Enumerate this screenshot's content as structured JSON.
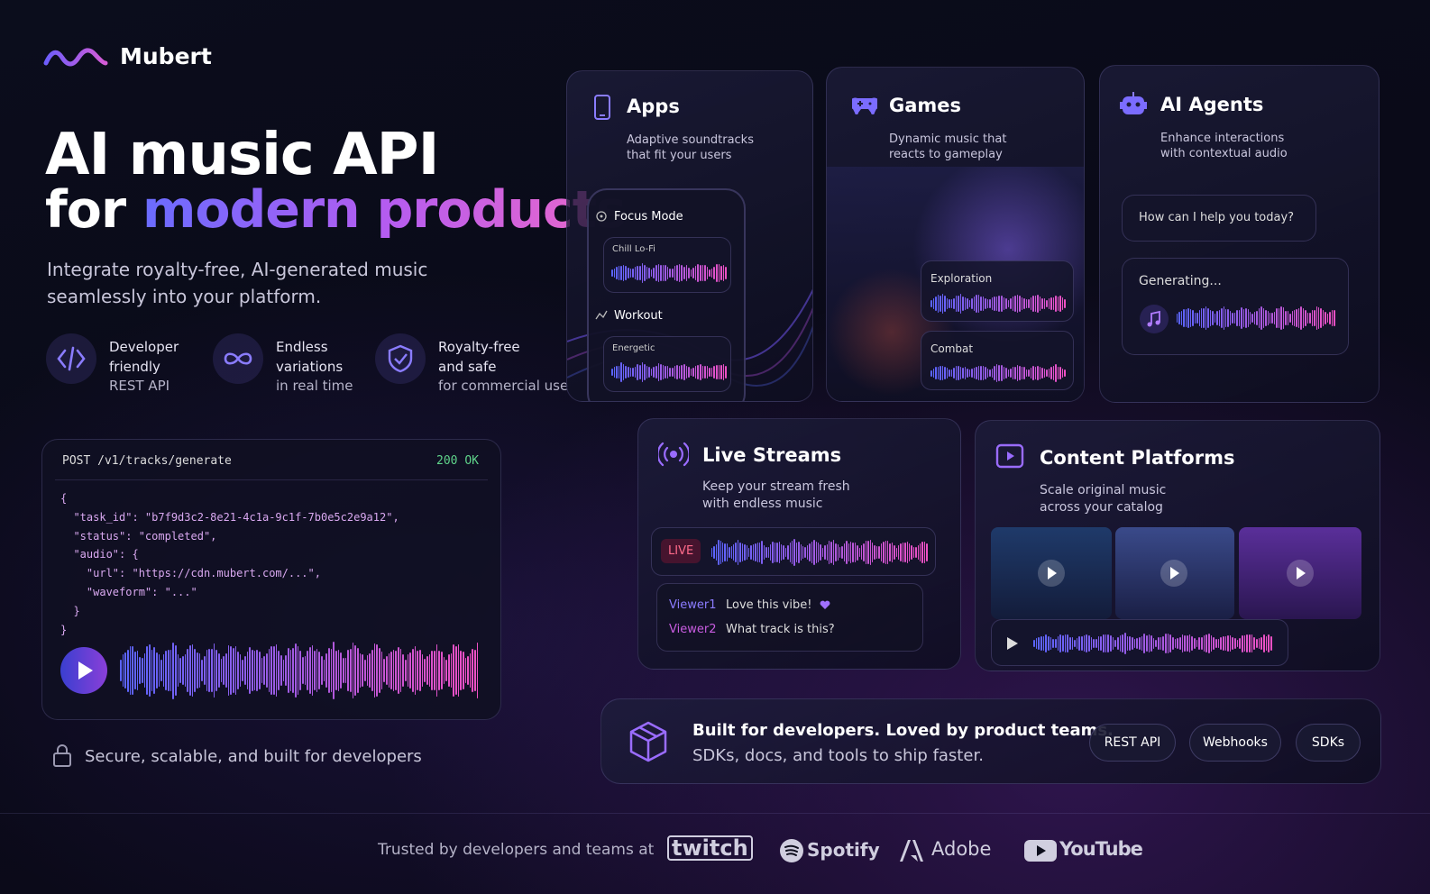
{
  "brand": "Mubert",
  "hero": {
    "title_line1": "AI music API",
    "title_line2_plain": "for",
    "title_line2_accent": "modern products",
    "subtitle_line1": "Integrate royalty-free, AI-generated music",
    "subtitle_line2": "seamlessly into your platform."
  },
  "features": [
    {
      "lines": [
        "Developer",
        "friendly",
        "REST API"
      ]
    },
    {
      "lines": [
        "Endless",
        "variations",
        "in real time"
      ]
    },
    {
      "lines": [
        "Royalty-free",
        "and safe",
        "for commercial use"
      ]
    }
  ],
  "code": {
    "request": "POST /v1/tracks/generate",
    "status": "200 OK",
    "lines": [
      "{",
      "  \"task_id\": \"b7f9d3c2-8e21-4c1a-9c1f-7b0e5c2e9a12\",",
      "  \"status\": \"completed\",",
      "  \"audio\": {",
      "    \"url\": \"https://cdn.mubert.com/...\",",
      "    \"waveform\": \"...\"",
      "  }",
      "}"
    ]
  },
  "secure_note": "Secure, scalable, and built for developers",
  "apps": {
    "title": "Apps",
    "desc_line1": "Adaptive soundtracks",
    "desc_line2": "that fit your users",
    "modes": [
      {
        "name": "Focus Mode",
        "preset": "Chill Lo-Fi"
      },
      {
        "name": "Workout",
        "preset": "Energetic"
      }
    ]
  },
  "games": {
    "title": "Games",
    "desc_line1": "Dynamic music that",
    "desc_line2": "reacts to gameplay",
    "tracks": [
      "Exploration",
      "Combat"
    ]
  },
  "agents": {
    "title": "AI Agents",
    "desc_line1": "Enhance interactions",
    "desc_line2": "with contextual audio",
    "prompt": "How can I help you today?",
    "status": "Generating..."
  },
  "live": {
    "title": "Live Streams",
    "desc_line1": "Keep your stream fresh",
    "desc_line2": "with endless music",
    "badge": "LIVE",
    "chat": [
      {
        "user": "Viewer1",
        "message": "Love this vibe!"
      },
      {
        "user": "Viewer2",
        "message": "What track is this?"
      }
    ]
  },
  "content": {
    "title": "Content Platforms",
    "desc_line1": "Scale original music",
    "desc_line2": "across your catalog"
  },
  "banner": {
    "headline": "Built for developers. Loved by product teams.",
    "sub": "SDKs, docs, and tools to ship faster.",
    "buttons": [
      "REST API",
      "Webhooks",
      "SDKs"
    ]
  },
  "footer": {
    "trusted": "Trusted by developers and teams at",
    "logos": [
      "twitch",
      "Spotify",
      "Adobe",
      "YouTube"
    ]
  }
}
